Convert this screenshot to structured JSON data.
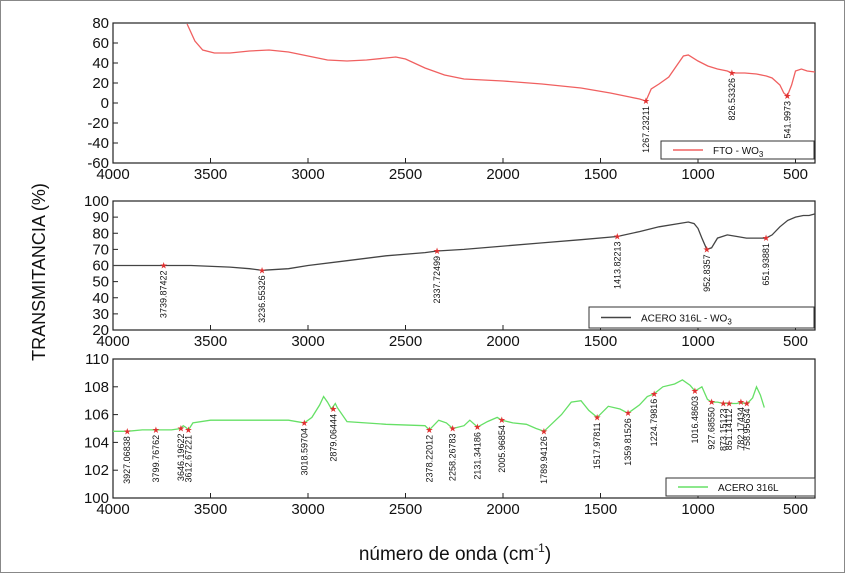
{
  "chart_data": {
    "type": "line",
    "ylabel": "TRANSMITANCIA (%)",
    "xlabel": "número de onda (cm",
    "xlabel_sup": "-1",
    "xlabel_end": ")",
    "xlim": [
      4000,
      400
    ],
    "xticks": [
      4000,
      3500,
      3000,
      2500,
      2000,
      1500,
      1000,
      500
    ],
    "panels": [
      {
        "legend": "FTO - WO",
        "legend_sub": "3",
        "color": "#f06060",
        "ylim": [
          -60,
          80
        ],
        "yticks": [
          -60,
          -40,
          -20,
          0,
          20,
          40,
          60,
          80
        ],
        "x": [
          3620,
          3580,
          3540,
          3480,
          3400,
          3300,
          3200,
          3100,
          3000,
          2900,
          2800,
          2700,
          2600,
          2550,
          2500,
          2400,
          2300,
          2200,
          2000,
          1800,
          1600,
          1450,
          1350,
          1300,
          1267,
          1240,
          1200,
          1150,
          1100,
          1075,
          1050,
          1000,
          950,
          900,
          850,
          826,
          760,
          700,
          650,
          620,
          580,
          560,
          542,
          520,
          500,
          470,
          440,
          400
        ],
        "y": [
          79,
          62,
          53,
          50,
          50,
          52,
          53,
          51,
          47,
          43,
          42,
          43,
          45,
          46,
          44,
          35,
          28,
          24,
          22,
          19,
          15,
          10,
          6,
          4,
          2,
          14,
          19,
          26,
          40,
          47,
          48,
          42,
          37,
          34,
          32,
          30,
          30,
          29,
          27,
          25,
          18,
          10,
          7,
          18,
          32,
          34,
          32,
          31
        ],
        "peaks": [
          {
            "x": 1267,
            "y": 2,
            "label": "1267.23211"
          },
          {
            "x": 826,
            "y": 30,
            "label": "826.53326"
          },
          {
            "x": 542,
            "y": 7,
            "label": "541.9973"
          }
        ]
      },
      {
        "legend": "ACERO 316L - WO",
        "legend_sub": "3",
        "color": "#444444",
        "ylim": [
          20,
          100
        ],
        "yticks": [
          20,
          30,
          40,
          50,
          60,
          70,
          80,
          90,
          100
        ],
        "x": [
          4000,
          3800,
          3740,
          3600,
          3400,
          3300,
          3236,
          3100,
          3000,
          2800,
          2600,
          2400,
          2338,
          2200,
          2000,
          1800,
          1600,
          1414,
          1300,
          1200,
          1100,
          1050,
          1020,
          1000,
          980,
          955,
          930,
          900,
          850,
          800,
          752,
          700,
          651,
          620,
          580,
          540,
          500,
          460,
          430,
          400
        ],
        "y": [
          60,
          60,
          60,
          60,
          59,
          58,
          57,
          58,
          60,
          63,
          66,
          68,
          69,
          70,
          72,
          74,
          76,
          78,
          81,
          84,
          86,
          87,
          86,
          83,
          77,
          70,
          71,
          77,
          79,
          78,
          77,
          77,
          77,
          79,
          84,
          88,
          90,
          91,
          91,
          92
        ],
        "peaks": [
          {
            "x": 3740,
            "y": 60,
            "label": "3739.87422"
          },
          {
            "x": 3236,
            "y": 57,
            "label": "3236.55326"
          },
          {
            "x": 2338,
            "y": 69,
            "label": "2337.72499"
          },
          {
            "x": 1414,
            "y": 78,
            "label": "1413.82213"
          },
          {
            "x": 955,
            "y": 70,
            "label": "952.8357"
          },
          {
            "x": 651,
            "y": 77,
            "label": "651.93881"
          }
        ]
      },
      {
        "legend": "ACERO 316L",
        "legend_sub": "",
        "color": "#66e066",
        "ylim": [
          100,
          110
        ],
        "yticks": [
          100,
          102,
          104,
          106,
          108,
          110
        ],
        "x": [
          4000,
          3927,
          3850,
          3780,
          3700,
          3652,
          3640,
          3628,
          3613,
          3590,
          3500,
          3300,
          3100,
          3019,
          2980,
          2940,
          2920,
          2900,
          2880,
          2860,
          2850,
          2800,
          2600,
          2400,
          2378,
          2330,
          2290,
          2258,
          2200,
          2170,
          2131,
          2080,
          2030,
          2006,
          1950,
          1880,
          1830,
          1790,
          1700,
          1650,
          1600,
          1560,
          1517,
          1460,
          1400,
          1359,
          1300,
          1260,
          1225,
          1180,
          1120,
          1080,
          1040,
          1016,
          980,
          952,
          930,
          900,
          870,
          840,
          800,
          780,
          760,
          740,
          720,
          700,
          680,
          660
        ],
        "y": [
          104.8,
          104.8,
          104.9,
          104.9,
          104.9,
          105.0,
          105.2,
          105.1,
          104.9,
          105.4,
          105.6,
          105.6,
          105.6,
          105.4,
          105.8,
          106.7,
          107.3,
          106.9,
          106.4,
          106.8,
          106.5,
          105.5,
          105.3,
          105.2,
          104.9,
          105.6,
          105.4,
          105.0,
          105.2,
          105.6,
          105.1,
          105.5,
          105.8,
          105.6,
          105.4,
          105.3,
          105.0,
          104.8,
          106.0,
          106.9,
          107.0,
          106.3,
          105.8,
          106.6,
          106.4,
          106.1,
          106.7,
          107.3,
          107.5,
          108.0,
          108.2,
          108.5,
          108.1,
          107.7,
          108.0,
          107.1,
          106.9,
          106.9,
          106.8,
          106.8,
          106.8,
          106.9,
          106.8,
          106.9,
          107.2,
          108.0,
          107.4,
          106.5
        ],
        "peaks": [
          {
            "x": 3927,
            "y": 104.8,
            "label": "3927.06838"
          },
          {
            "x": 3780,
            "y": 104.9,
            "label": "3799.76762"
          },
          {
            "x": 3652,
            "y": 105.0,
            "label": "3646.19622"
          },
          {
            "x": 3613,
            "y": 104.9,
            "label": "3612.67221"
          },
          {
            "x": 3019,
            "y": 105.4,
            "label": "3018.59704"
          },
          {
            "x": 2870,
            "y": 106.4,
            "label": "2879.06444"
          },
          {
            "x": 2378,
            "y": 104.9,
            "label": "2378.22012"
          },
          {
            "x": 2258,
            "y": 105.0,
            "label": "2258.26783"
          },
          {
            "x": 2131,
            "y": 105.1,
            "label": "2131.34186"
          },
          {
            "x": 2006,
            "y": 105.6,
            "label": "2005.96854"
          },
          {
            "x": 1790,
            "y": 104.8,
            "label": "1789.94126"
          },
          {
            "x": 1517,
            "y": 105.8,
            "label": "1517.97811"
          },
          {
            "x": 1359,
            "y": 106.1,
            "label": "1359.81526"
          },
          {
            "x": 1225,
            "y": 107.5,
            "label": "1224.79816"
          },
          {
            "x": 1016,
            "y": 107.7,
            "label": "1016.48603"
          },
          {
            "x": 930,
            "y": 106.9,
            "label": "927.68550"
          },
          {
            "x": 870,
            "y": 106.8,
            "label": "873.15123"
          },
          {
            "x": 840,
            "y": 106.8,
            "label": "851.14112"
          },
          {
            "x": 780,
            "y": 106.9,
            "label": "782.17434"
          },
          {
            "x": 750,
            "y": 106.8,
            "label": "758.95634"
          }
        ]
      }
    ]
  }
}
